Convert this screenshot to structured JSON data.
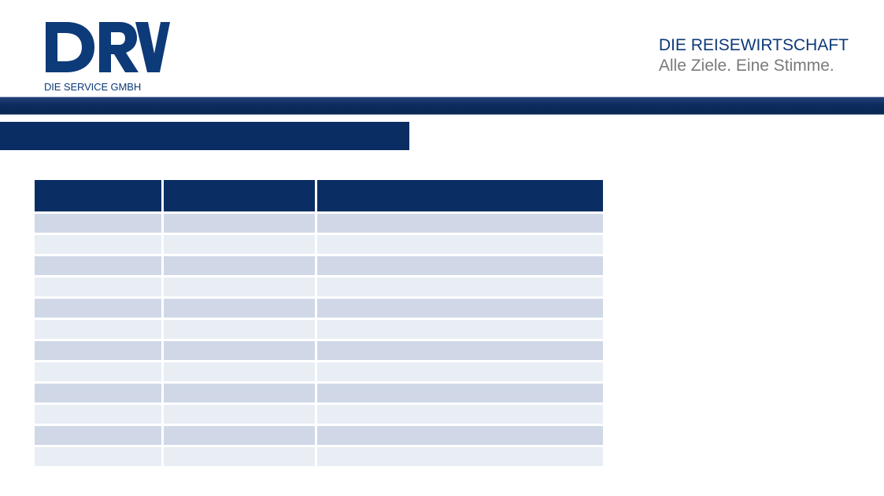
{
  "header": {
    "logo": {
      "icon": "drv-logo-icon",
      "wordmark": "DRV",
      "subtitle": "DIE SERVICE GMBH"
    },
    "tagline": {
      "title": "DIE REISEWIRTSCHAFT",
      "subtitle": "Alle Ziele. Eine Stimme."
    }
  },
  "colors": {
    "brand_navy": "#0a2d63",
    "brand_blue": "#0d3a78",
    "row_odd": "#d0d8e8",
    "row_even": "#e9eef5",
    "tagline_grey": "#7a7a7a"
  },
  "section": {
    "title": ""
  },
  "table": {
    "columns": [
      "",
      "",
      ""
    ],
    "rows": [
      [
        "",
        "",
        ""
      ],
      [
        "",
        "",
        ""
      ],
      [
        "",
        "",
        ""
      ],
      [
        "",
        "",
        ""
      ],
      [
        "",
        "",
        ""
      ],
      [
        "",
        "",
        ""
      ],
      [
        "",
        "",
        ""
      ],
      [
        "",
        "",
        ""
      ],
      [
        "",
        "",
        ""
      ],
      [
        "",
        "",
        ""
      ],
      [
        "",
        "",
        ""
      ],
      [
        "",
        "",
        ""
      ]
    ]
  }
}
